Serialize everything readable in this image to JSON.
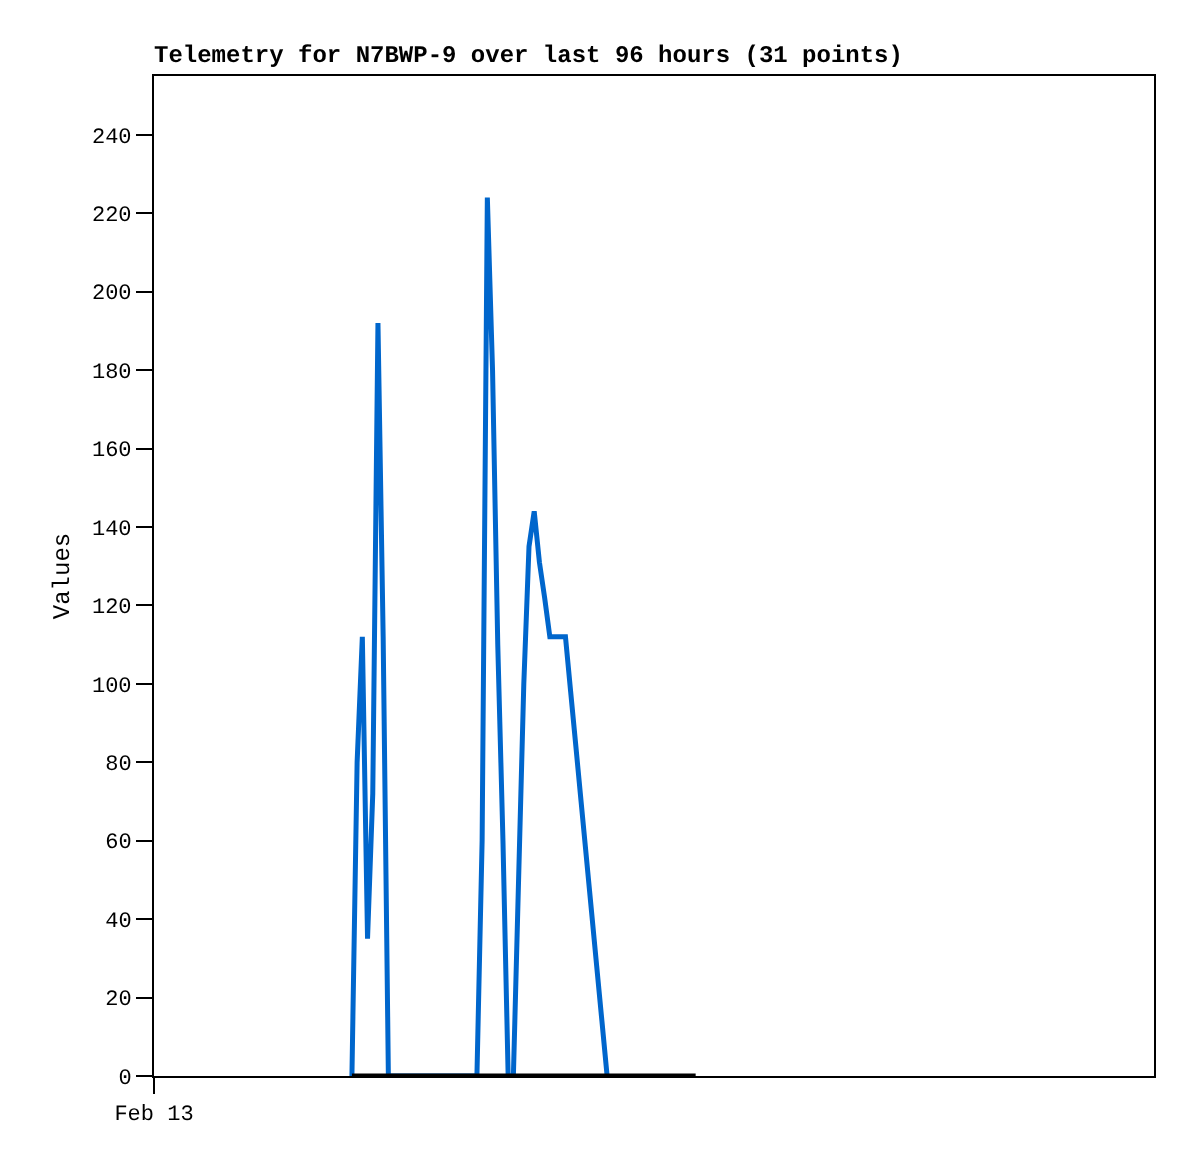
{
  "chart_data": {
    "type": "line",
    "title": "Telemetry for N7BWP-9 over last 96 hours (31 points)",
    "ylabel": "Values",
    "categories": [
      "Feb 13",
      null,
      null,
      null,
      null,
      null,
      null,
      null,
      null,
      null,
      null,
      null,
      null,
      null,
      null,
      null,
      null,
      null,
      null,
      null,
      null,
      null,
      null,
      null,
      null,
      null,
      null,
      null,
      null,
      null,
      null,
      null,
      null,
      null,
      null,
      null,
      null,
      null,
      null,
      null,
      null,
      null,
      null,
      null,
      null,
      null,
      null,
      null,
      null,
      null,
      null,
      null,
      null,
      null,
      null,
      null,
      null,
      null,
      null,
      null,
      null,
      null,
      null,
      null,
      null,
      null,
      null,
      null,
      null,
      null,
      null,
      null,
      null,
      null,
      null,
      null,
      null,
      null,
      null,
      null,
      null,
      null,
      null,
      null,
      null,
      null,
      null,
      null,
      null,
      null,
      null,
      null,
      null,
      null,
      null,
      null,
      null,
      null,
      null,
      null,
      null,
      null,
      null,
      null,
      null,
      null,
      null,
      null,
      null,
      null,
      null,
      null,
      null,
      null,
      null,
      null,
      null,
      null,
      null,
      null,
      null,
      null,
      null,
      null,
      null,
      null,
      null,
      null,
      null,
      null,
      null,
      null,
      null,
      null,
      null,
      null,
      null,
      null,
      null,
      null,
      null,
      null,
      null,
      null,
      null,
      null,
      null,
      null,
      null,
      null,
      null,
      null,
      null,
      null,
      null,
      null,
      null,
      null,
      null,
      null,
      null,
      null,
      null,
      null,
      null,
      null,
      null,
      null,
      null,
      null,
      null,
      null,
      null,
      null,
      null,
      null,
      null,
      null,
      null,
      null,
      null,
      null,
      null,
      null,
      null,
      null,
      null,
      null,
      null,
      null,
      null,
      null,
      null
    ],
    "series": [
      {
        "color": "#0066cc",
        "values": [
          null,
          null,
          null,
          null,
          null,
          null,
          null,
          null,
          null,
          null,
          null,
          null,
          null,
          null,
          null,
          null,
          null,
          null,
          null,
          null,
          null,
          null,
          null,
          null,
          null,
          null,
          null,
          null,
          null,
          null,
          null,
          null,
          null,
          null,
          null,
          null,
          null,
          null,
          0,
          80,
          112,
          35,
          72,
          192,
          112,
          0,
          0,
          0,
          0,
          0,
          0,
          0,
          0,
          0,
          0,
          0,
          0,
          0,
          0,
          0,
          0,
          0,
          0,
          60,
          224,
          180,
          110,
          60,
          0,
          0,
          50,
          100,
          135,
          144,
          131,
          122,
          112,
          112,
          112,
          112,
          98,
          84,
          70,
          56,
          42,
          28,
          14,
          0,
          null,
          null,
          null,
          null,
          null,
          null,
          null,
          null,
          null,
          null,
          null,
          null,
          null,
          null,
          null,
          null,
          null,
          null,
          null,
          null,
          null,
          null,
          null,
          null,
          null,
          null,
          null,
          null,
          null,
          null,
          null,
          null,
          null,
          null,
          null,
          null,
          null,
          null,
          null,
          null,
          null,
          null,
          null,
          null,
          null,
          null,
          null,
          null,
          null,
          null,
          null,
          null,
          null,
          null,
          null,
          null,
          null,
          null,
          null,
          null,
          null,
          null,
          null,
          null,
          null,
          null,
          null,
          null,
          null,
          null,
          null,
          null,
          null,
          null,
          null,
          null,
          null,
          null,
          null,
          null,
          null,
          null,
          null,
          null,
          null,
          null,
          null,
          null,
          null,
          null,
          null,
          null,
          null,
          null,
          null,
          null,
          null,
          null,
          null,
          null,
          null,
          null,
          null,
          null,
          null
        ]
      },
      {
        "color": "#000000",
        "values": [
          null,
          null,
          null,
          null,
          null,
          null,
          null,
          null,
          null,
          null,
          null,
          null,
          null,
          null,
          null,
          null,
          null,
          null,
          null,
          null,
          null,
          null,
          null,
          null,
          null,
          null,
          null,
          null,
          null,
          null,
          null,
          null,
          null,
          null,
          null,
          null,
          null,
          null,
          0,
          0,
          0,
          0,
          0,
          0,
          0,
          0,
          0,
          0,
          0,
          0,
          0,
          0,
          0,
          0,
          0,
          0,
          0,
          0,
          0,
          0,
          0,
          0,
          0,
          0,
          0,
          0,
          0,
          0,
          0,
          0,
          0,
          0,
          0,
          0,
          0,
          0,
          0,
          0,
          0,
          0,
          0,
          0,
          0,
          0,
          0,
          0,
          0,
          0,
          0,
          0,
          0,
          0,
          0,
          0,
          0,
          0,
          0,
          0,
          0,
          0,
          0,
          0,
          0,
          0,
          0,
          null,
          null,
          null,
          null,
          null,
          null,
          null,
          null,
          null,
          null,
          null,
          null,
          null,
          null,
          null,
          null,
          null,
          null,
          null,
          null,
          null,
          null,
          null,
          null,
          null,
          null,
          null,
          null,
          null,
          null,
          null,
          null,
          null,
          null,
          null,
          null,
          null,
          null,
          null,
          null,
          null,
          null,
          null,
          null,
          null,
          null,
          null,
          null,
          null,
          null,
          null,
          null,
          null,
          null,
          null,
          null,
          null,
          null,
          null,
          null,
          null,
          null,
          null,
          null,
          null,
          null,
          null,
          null,
          null,
          null,
          null,
          null,
          null,
          null,
          null,
          null,
          null,
          null,
          null,
          null,
          null,
          null,
          null,
          null,
          null,
          null,
          null,
          null
        ]
      }
    ],
    "ylim": [
      0,
      255
    ],
    "yticks": [
      0,
      20,
      40,
      60,
      80,
      100,
      120,
      140,
      160,
      180,
      200,
      220,
      240
    ],
    "marker": "none",
    "line_style": "solid"
  }
}
